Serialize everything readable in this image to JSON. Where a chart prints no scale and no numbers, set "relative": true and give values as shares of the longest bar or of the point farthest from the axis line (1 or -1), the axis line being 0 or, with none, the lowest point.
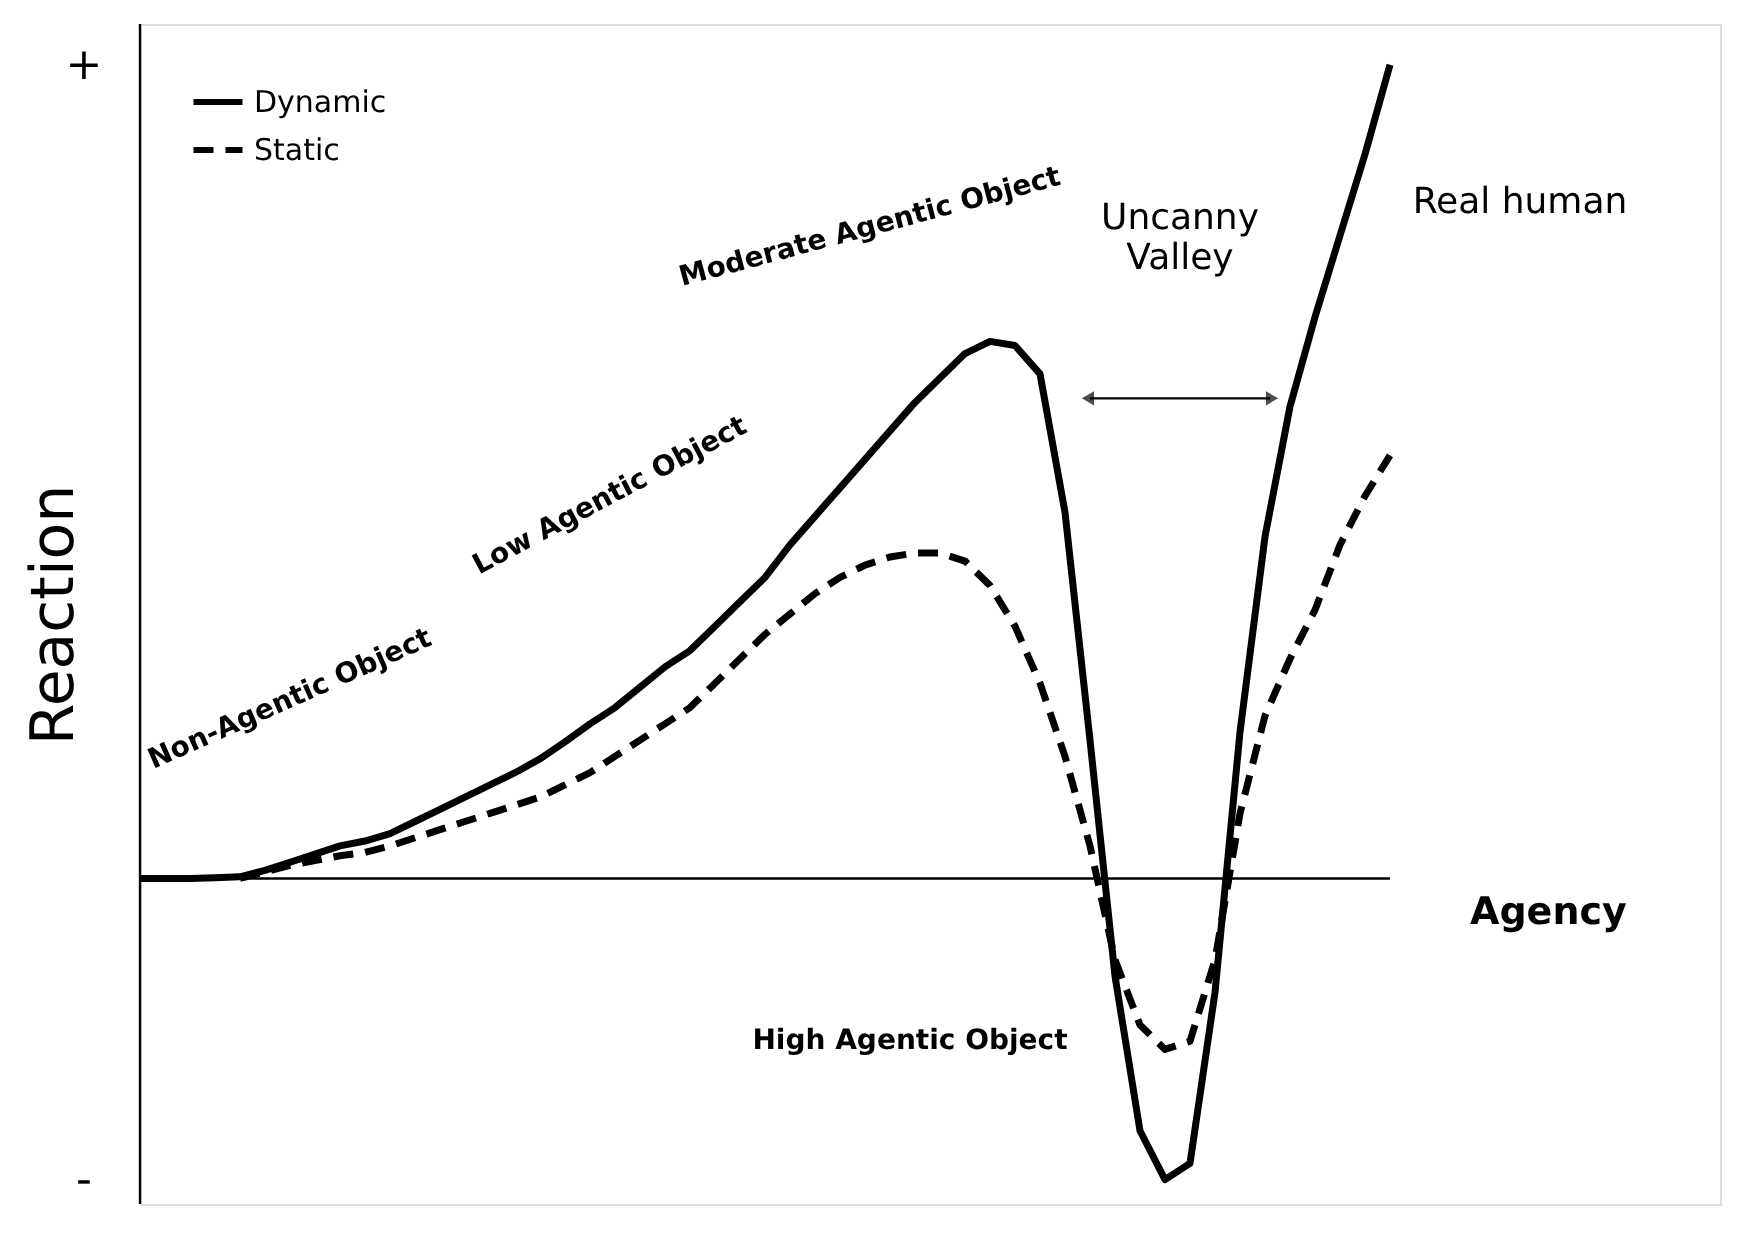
{
  "chart_data": {
    "type": "line",
    "relative": true,
    "xlabel": "Agency",
    "ylabel": "Reaction",
    "legend": "top left",
    "grid": false,
    "tick_labels": false,
    "categories": [
      null,
      null,
      null,
      null,
      null,
      null,
      null,
      null,
      null,
      null,
      null,
      null,
      null,
      null,
      null,
      null,
      null,
      null,
      null,
      null,
      null,
      null,
      null,
      null,
      null,
      null,
      null,
      null,
      null,
      null,
      null,
      null,
      null,
      null,
      null,
      null,
      null,
      null,
      null,
      null,
      null,
      null,
      null,
      null,
      null,
      null,
      null,
      null,
      null,
      null,
      null
    ],
    "series": [
      {
        "name": "Dynamic",
        "color": "#000000",
        "line_style": "solid",
        "values": [
          0,
          0,
          0,
          0.001,
          0.002,
          0.01,
          0.02,
          0.03,
          0.04,
          0.046,
          0.055,
          0.07,
          0.085,
          0.1,
          0.115,
          0.13,
          0.147,
          0.168,
          0.19,
          0.21,
          0.235,
          0.26,
          0.28,
          0.31,
          0.34,
          0.37,
          0.41,
          0.445,
          0.48,
          0.515,
          0.55,
          0.585,
          0.615,
          0.645,
          0.66,
          0.655,
          0.62,
          0.45,
          0.17,
          -0.12,
          -0.31,
          -0.37,
          -0.35,
          -0.14,
          0.18,
          0.42,
          0.58,
          0.69,
          0.79,
          0.89,
          1.0
        ]
      },
      {
        "name": "Static",
        "color": "#000000",
        "line_style": "dashed",
        "values": [
          null,
          null,
          null,
          null,
          0,
          0.008,
          0.016,
          0.022,
          0.028,
          0.032,
          0.04,
          0.05,
          0.06,
          0.07,
          0.08,
          0.09,
          0.1,
          0.115,
          0.13,
          0.15,
          0.17,
          0.19,
          0.21,
          0.24,
          0.27,
          0.3,
          0.325,
          0.35,
          0.37,
          0.385,
          0.395,
          0.4,
          0.4,
          0.39,
          0.36,
          0.31,
          0.24,
          0.15,
          0.04,
          -0.1,
          -0.18,
          -0.21,
          -0.2,
          -0.1,
          0.08,
          0.2,
          0.27,
          0.33,
          0.41,
          0.47,
          0.52
        ]
      }
    ],
    "annotations": [
      "+",
      "-",
      "Non-Agentic Object",
      "Low Agentic Object",
      "Moderate Agentic Object",
      "Uncanny Valley",
      "Real human",
      "High Agentic Object"
    ]
  }
}
